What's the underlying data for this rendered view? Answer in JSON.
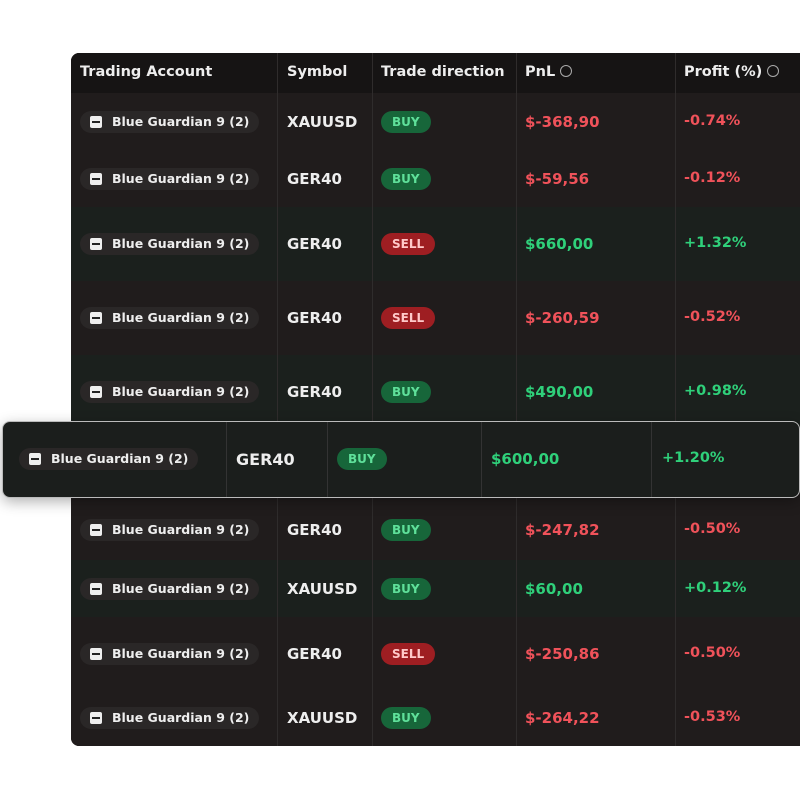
{
  "table": {
    "columns": [
      "Trading Account",
      "Symbol",
      "Trade direction",
      "PnL",
      "Profit (%)"
    ],
    "rows": [
      {
        "account": "Blue Guardian 9 (2)",
        "symbol": "XAUUSD",
        "direction": "BUY",
        "pnl": "$-368,90",
        "profit": "-0.74%"
      },
      {
        "account": "Blue Guardian 9 (2)",
        "symbol": "GER40",
        "direction": "BUY",
        "pnl": "$-59,56",
        "profit": "-0.12%"
      },
      {
        "account": "Blue Guardian 9 (2)",
        "symbol": "GER40",
        "direction": "SELL",
        "pnl": "$660,00",
        "profit": "+1.32%"
      },
      {
        "account": "Blue Guardian 9 (2)",
        "symbol": "GER40",
        "direction": "SELL",
        "pnl": "$-260,59",
        "profit": "-0.52%"
      },
      {
        "account": "Blue Guardian 9 (2)",
        "symbol": "GER40",
        "direction": "BUY",
        "pnl": "$490,00",
        "profit": "+0.98%"
      }
    ],
    "featured_row": {
      "account": "Blue Guardian 9 (2)",
      "symbol": "GER40",
      "direction": "BUY",
      "pnl": "$600,00",
      "profit": "+1.20%"
    },
    "rows_after": [
      {
        "account": "Blue Guardian 9 (2)",
        "symbol": "GER40",
        "direction": "BUY",
        "pnl": "$-247,82",
        "profit": "-0.50%"
      },
      {
        "account": "Blue Guardian 9 (2)",
        "symbol": "XAUUSD",
        "direction": "BUY",
        "pnl": "$60,00",
        "profit": "+0.12%"
      },
      {
        "account": "Blue Guardian 9 (2)",
        "symbol": "GER40",
        "direction": "SELL",
        "pnl": "$-250,86",
        "profit": "-0.50%"
      },
      {
        "account": "Blue Guardian 9 (2)",
        "symbol": "XAUUSD",
        "direction": "BUY",
        "pnl": "$-264,22",
        "profit": "-0.53%"
      }
    ]
  }
}
